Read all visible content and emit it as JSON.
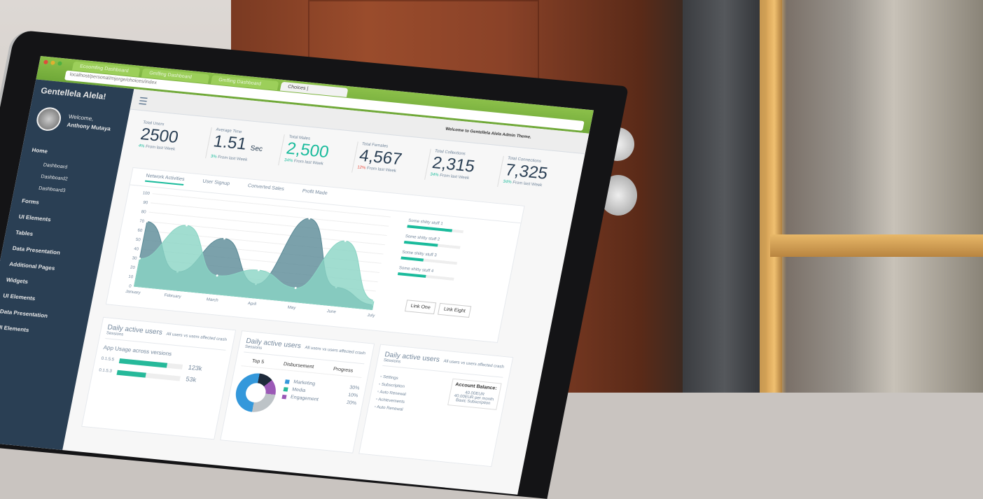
{
  "browser": {
    "tabs": [
      "Ecoomfing Dashboard",
      "Gmffing Dashboard",
      "Gmffing Dashboard",
      "Choices |"
    ],
    "url": "localhost/personal/mjorge/choices/index"
  },
  "sidebar": {
    "brand": "Gentellela Alela!",
    "welcome": "Welcome,",
    "user": "Anthony Mutaya",
    "items": [
      {
        "label": "Home",
        "type": "main"
      },
      {
        "label": "Dashboard",
        "type": "sub"
      },
      {
        "label": "Dashboard2",
        "type": "sub"
      },
      {
        "label": "Dashboard3",
        "type": "sub"
      },
      {
        "label": "Forms",
        "type": "main"
      },
      {
        "label": "UI Elements",
        "type": "main"
      },
      {
        "label": "Tables",
        "type": "main"
      },
      {
        "label": "Data Presentation",
        "type": "main"
      },
      {
        "label": "Additional Pages",
        "type": "main"
      },
      {
        "label": "Widgets",
        "type": "main"
      },
      {
        "label": "UI Elements",
        "type": "main"
      },
      {
        "label": "Data Presentation",
        "type": "main"
      },
      {
        "label": "UI Elements",
        "type": "main"
      }
    ]
  },
  "topnav": {
    "welcome": "Welcome to Gentellela Alela Admin Theme."
  },
  "tiles": [
    {
      "label": "Total Users",
      "value": "2500",
      "unit": "",
      "change": "4%",
      "change_text": "From last Week",
      "color": "normal",
      "trend": "neutral"
    },
    {
      "label": "Average Time",
      "value": "1.51",
      "unit": "Sec",
      "change": "3%",
      "change_text": "From last Week",
      "color": "normal",
      "trend": "up"
    },
    {
      "label": "Total Males",
      "value": "2,500",
      "unit": "",
      "change": "34%",
      "change_text": "From last Week",
      "color": "green",
      "trend": "up"
    },
    {
      "label": "Total Females",
      "value": "4,567",
      "unit": "",
      "change": "12%",
      "change_text": "From last Week",
      "color": "normal",
      "trend": "down"
    },
    {
      "label": "Total Collections",
      "value": "2,315",
      "unit": "",
      "change": "34%",
      "change_text": "From last Week",
      "color": "normal",
      "trend": "up"
    },
    {
      "label": "Total Connections",
      "value": "7,325",
      "unit": "",
      "change": "34%",
      "change_text": "From last Week",
      "color": "normal",
      "trend": "up"
    }
  ],
  "chart_tabs": [
    "Network Activities",
    "User Signup",
    "Converted Sales",
    "Profit Made"
  ],
  "chart_data": {
    "type": "area",
    "x": [
      "January",
      "February",
      "March",
      "April",
      "May",
      "June",
      "July"
    ],
    "yticks": [
      0,
      10,
      20,
      30,
      40,
      50,
      60,
      70,
      80,
      90,
      100
    ],
    "ylim": [
      0,
      100
    ],
    "series": [
      {
        "values": [
          70,
          20,
          60,
          15,
          90,
          20,
          5
        ],
        "color": "#5a8a96"
      },
      {
        "values": [
          30,
          70,
          20,
          30,
          15,
          70,
          10
        ],
        "color": "#8ad4c4"
      }
    ]
  },
  "progress": [
    {
      "label": "Some shitty stuff 1",
      "value": 80
    },
    {
      "label": "Some shitty stuff 2",
      "value": 60
    },
    {
      "label": "Some shitty stuff 3",
      "value": 40
    },
    {
      "label": "Some shitty stuff 4",
      "value": 50
    }
  ],
  "buttons": [
    "Link One",
    "Link Eight"
  ],
  "cards": [
    {
      "title": "Daily active users",
      "subtitle": "All users vs users affected crash",
      "sessions": "Sessions"
    },
    {
      "title": "Daily active users",
      "subtitle": "All users vs users affected crash",
      "sessions": "Sessions"
    },
    {
      "title": "Daily active users",
      "subtitle": "All users vs users affected crash",
      "sessions": "Sessions"
    }
  ],
  "app_usage": {
    "title": "App Usage across versions",
    "rows": [
      {
        "version": "0.1.5.5",
        "value": "123k",
        "fill": 75
      },
      {
        "version": "0.1.5.3",
        "value": "53k",
        "fill": 45
      }
    ]
  },
  "top5": {
    "headers": [
      "Top 5",
      "Disbursement",
      "Progress"
    ],
    "items": [
      {
        "label": "Marketing",
        "value": "30%",
        "color": "#3498db"
      },
      {
        "label": "Media",
        "value": "10%",
        "color": "#26b99a"
      },
      {
        "label": "Engagement",
        "value": "20%",
        "color": "#9b59b6"
      }
    ]
  },
  "settings": {
    "items": [
      "Settings",
      "Subscription",
      "Auto Renewal",
      "Achievements",
      "Auto Renewal"
    ],
    "account_title": "Account Balance:",
    "balance": "40.00EUR",
    "plan": "40.00EUR per month Basic Subscription"
  }
}
